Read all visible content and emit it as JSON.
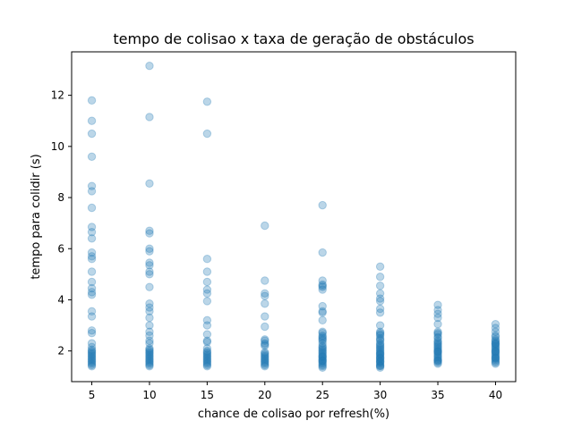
{
  "chart_data": {
    "type": "scatter",
    "title": "tempo de colisao x taxa de geração de obstáculos",
    "xlabel": "chance de colisao por refresh(%)",
    "ylabel": "tempo para colidir (s)",
    "xlim": [
      3.25,
      41.75
    ],
    "ylim": [
      0.8,
      13.7
    ],
    "xticks": [
      5,
      10,
      15,
      20,
      25,
      30,
      35,
      40
    ],
    "yticks": [
      2,
      4,
      6,
      8,
      10,
      12
    ],
    "grid": false,
    "legend": "none",
    "point_color": "#1f77b4",
    "point_alpha": 0.3,
    "series": [
      {
        "x": [
          5,
          5,
          5,
          5,
          5,
          5,
          5,
          5,
          5,
          5,
          5,
          5,
          5,
          5,
          5,
          5,
          5,
          5,
          5,
          5,
          5,
          5,
          5,
          5,
          5,
          5,
          5,
          5,
          5,
          5,
          5,
          5,
          5,
          5,
          5,
          5,
          5,
          5
        ],
        "y": [
          11.8,
          11.0,
          10.5,
          9.6,
          8.45,
          8.25,
          7.6,
          6.85,
          6.65,
          6.4,
          5.85,
          5.7,
          5.6,
          5.1,
          4.7,
          4.45,
          4.3,
          4.2,
          3.55,
          3.35,
          2.8,
          2.7,
          2.3,
          2.15,
          2.05,
          2.0,
          1.95,
          1.85,
          1.8,
          1.75,
          1.7,
          1.65,
          1.6,
          1.55,
          1.5,
          1.45,
          1.4,
          1.9
        ]
      },
      {
        "x": [
          10,
          10,
          10,
          10,
          10,
          10,
          10,
          10,
          10,
          10,
          10,
          10,
          10,
          10,
          10,
          10,
          10,
          10,
          10,
          10,
          10,
          10,
          10,
          10,
          10,
          10,
          10,
          10,
          10,
          10,
          10,
          10,
          10,
          10,
          10,
          10
        ],
        "y": [
          13.15,
          11.15,
          8.55,
          6.7,
          6.6,
          6.0,
          5.9,
          5.45,
          5.35,
          5.1,
          5.0,
          4.5,
          3.85,
          3.7,
          3.55,
          3.3,
          3.0,
          2.75,
          2.6,
          2.4,
          2.1,
          2.05,
          1.95,
          1.9,
          1.85,
          1.8,
          1.75,
          1.7,
          1.65,
          1.6,
          1.55,
          1.5,
          1.45,
          1.4,
          2.3,
          2.0
        ]
      },
      {
        "x": [
          15,
          15,
          15,
          15,
          15,
          15,
          15,
          15,
          15,
          15,
          15,
          15,
          15,
          15,
          15,
          15,
          15,
          15,
          15,
          15,
          15,
          15,
          15,
          15,
          15,
          15,
          15
        ],
        "y": [
          11.75,
          10.5,
          5.6,
          5.1,
          4.7,
          4.4,
          4.25,
          3.95,
          3.2,
          3.0,
          2.65,
          2.4,
          2.35,
          2.0,
          1.95,
          1.9,
          1.85,
          1.8,
          1.75,
          1.7,
          1.65,
          1.6,
          1.55,
          1.45,
          1.4,
          2.1,
          1.5
        ]
      },
      {
        "x": [
          20,
          20,
          20,
          20,
          20,
          20,
          20,
          20,
          20,
          20,
          20,
          20,
          20,
          20,
          20,
          20,
          20,
          20,
          20,
          20,
          20,
          20,
          20,
          20
        ],
        "y": [
          6.9,
          4.75,
          4.25,
          4.15,
          3.85,
          3.35,
          2.95,
          2.45,
          2.4,
          2.3,
          2.25,
          1.95,
          1.9,
          1.85,
          1.8,
          1.75,
          1.7,
          1.65,
          1.6,
          1.55,
          1.5,
          1.45,
          1.4,
          2.2
        ]
      },
      {
        "x": [
          25,
          25,
          25,
          25,
          25,
          25,
          25,
          25,
          25,
          25,
          25,
          25,
          25,
          25,
          25,
          25,
          25,
          25,
          25,
          25,
          25,
          25,
          25,
          25,
          25,
          25,
          25,
          25,
          25,
          25,
          25,
          25,
          25,
          25,
          25,
          25,
          25,
          25,
          25
        ],
        "y": [
          7.7,
          5.85,
          4.75,
          4.6,
          4.55,
          4.5,
          4.4,
          3.75,
          3.5,
          3.2,
          2.75,
          2.7,
          2.6,
          2.5,
          2.45,
          2.4,
          2.3,
          2.2,
          2.1,
          2.05,
          2.0,
          1.95,
          1.9,
          1.85,
          1.8,
          1.75,
          1.7,
          1.65,
          1.6,
          1.55,
          1.5,
          1.45,
          1.4,
          3.55,
          2.55,
          1.35,
          2.15,
          1.78,
          1.62
        ]
      },
      {
        "x": [
          30,
          30,
          30,
          30,
          30,
          30,
          30,
          30,
          30,
          30,
          30,
          30,
          30,
          30,
          30,
          30,
          30,
          30,
          30,
          30,
          30,
          30,
          30,
          30,
          30,
          30,
          30,
          30,
          30,
          30,
          30,
          30,
          30,
          30,
          30,
          30,
          30,
          30,
          30,
          30
        ],
        "y": [
          5.3,
          4.9,
          4.55,
          4.25,
          4.05,
          3.95,
          3.65,
          3.5,
          3.0,
          2.75,
          2.7,
          2.6,
          2.5,
          2.45,
          2.4,
          2.3,
          2.2,
          2.15,
          2.1,
          2.05,
          2.0,
          1.95,
          1.9,
          1.85,
          1.8,
          1.75,
          1.7,
          1.65,
          1.6,
          1.55,
          1.5,
          1.45,
          1.4,
          1.35,
          2.65,
          2.25,
          1.88,
          1.72,
          1.58,
          1.42
        ]
      },
      {
        "x": [
          35,
          35,
          35,
          35,
          35,
          35,
          35,
          35,
          35,
          35,
          35,
          35,
          35,
          35,
          35,
          35,
          35,
          35,
          35,
          35,
          35,
          35,
          35,
          35,
          35,
          35,
          35,
          35,
          35,
          35,
          35
        ],
        "y": [
          3.8,
          3.6,
          3.45,
          3.3,
          3.05,
          2.75,
          2.7,
          2.65,
          2.55,
          2.4,
          2.35,
          2.3,
          2.2,
          2.15,
          2.1,
          2.05,
          2.0,
          1.95,
          1.9,
          1.85,
          1.8,
          1.75,
          1.7,
          1.65,
          1.6,
          1.55,
          1.5,
          2.5,
          2.25,
          1.98,
          1.62
        ]
      },
      {
        "x": [
          40,
          40,
          40,
          40,
          40,
          40,
          40,
          40,
          40,
          40,
          40,
          40,
          40,
          40,
          40,
          40,
          40,
          40,
          40,
          40,
          40,
          40,
          40,
          40,
          40,
          40,
          40,
          40
        ],
        "y": [
          3.05,
          2.9,
          2.75,
          2.6,
          2.45,
          2.4,
          2.35,
          2.3,
          2.25,
          2.2,
          2.15,
          2.1,
          2.05,
          2.0,
          1.95,
          1.9,
          1.85,
          1.8,
          1.75,
          1.7,
          1.65,
          1.6,
          1.55,
          1.5,
          2.55,
          2.28,
          1.98,
          1.72
        ]
      }
    ]
  }
}
